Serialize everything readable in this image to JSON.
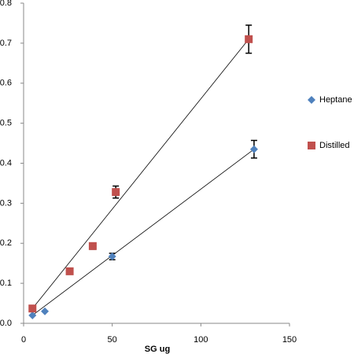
{
  "chart_data": {
    "type": "scatter",
    "x_label": "SG ug",
    "xlim": [
      0,
      150
    ],
    "xticks": [
      0,
      50,
      100,
      150
    ],
    "ylim": [
      0,
      0.8
    ],
    "yticks": [
      {
        "value": 0,
        "label": "0.0"
      },
      0.1,
      0.2,
      0.3,
      0.4,
      0.5,
      0.6,
      0.7,
      0.8
    ],
    "grid": false,
    "trendline": true,
    "legend": "right",
    "series": [
      {
        "name": "Heptane",
        "color": "#4f81bd",
        "marker": "diamond",
        "x": [
          5,
          12,
          50,
          130
        ],
        "values": [
          0.02,
          0.03,
          0.167,
          0.435
        ],
        "errors": [
          null,
          null,
          0.008,
          0.022
        ]
      },
      {
        "name": "Distilled",
        "color": "#c0504d",
        "marker": "square",
        "x": [
          5,
          26,
          39,
          52,
          127
        ],
        "values": [
          0.037,
          0.13,
          0.193,
          0.328,
          0.71
        ],
        "errors": [
          null,
          null,
          0.008,
          0.015,
          0.035
        ]
      }
    ]
  }
}
